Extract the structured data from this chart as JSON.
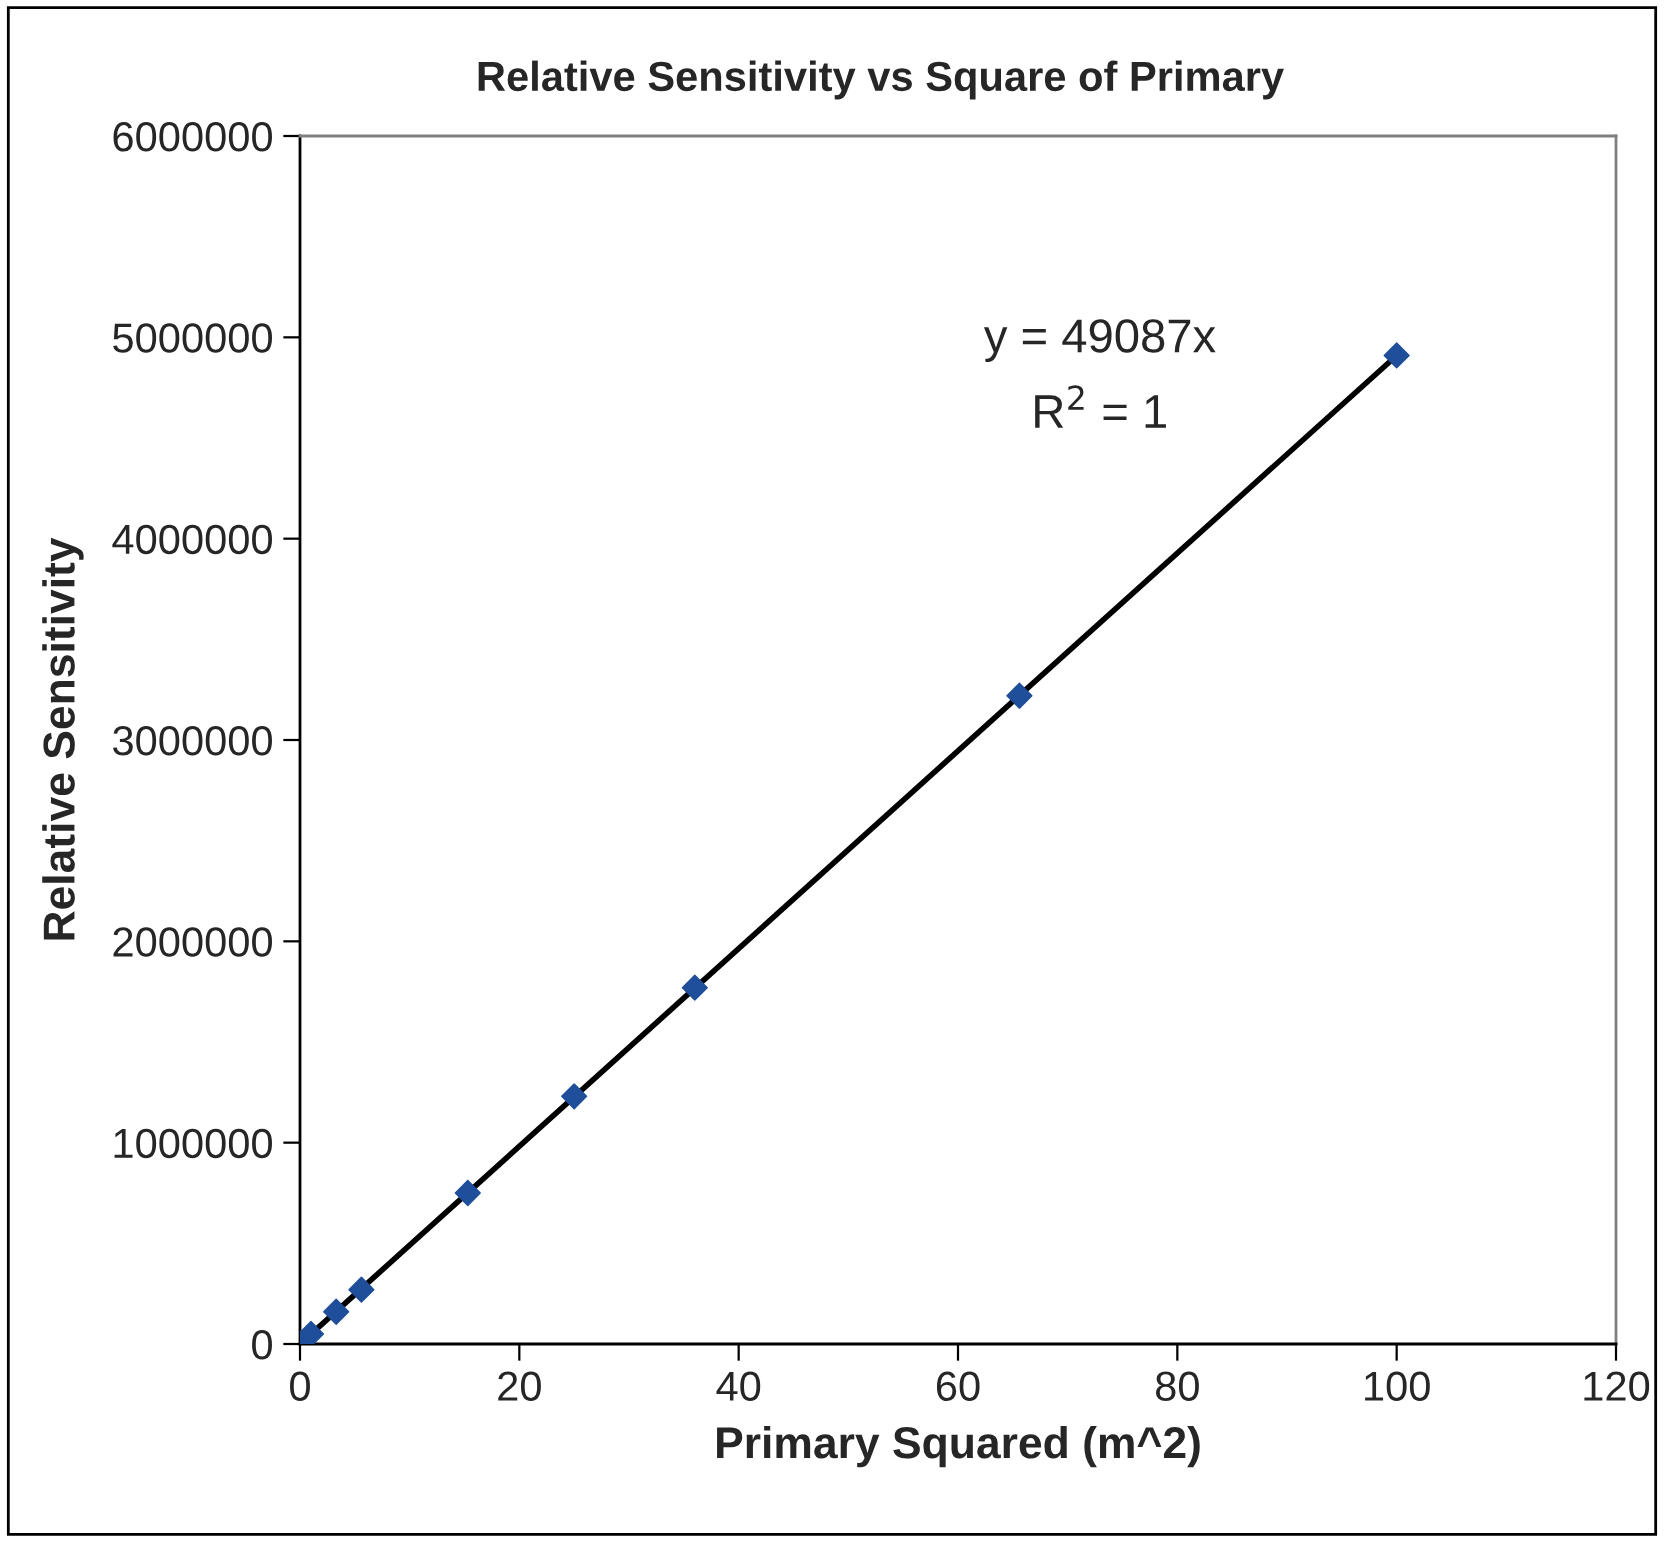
{
  "chart_data": {
    "type": "scatter",
    "title": "Relative Sensitivity vs Square of Primary",
    "xlabel": "Primary Squared (m^2)",
    "ylabel": "Relative Sensitivity",
    "annotations": [
      "y = 49087x",
      "R$^{2}$ = 1"
    ],
    "grid": false,
    "legend": false,
    "xlim": [
      0,
      120
    ],
    "xticks": [
      0,
      20,
      40,
      60,
      80,
      100,
      120
    ],
    "ylim": [
      0,
      6000000
    ],
    "yticks": [
      0,
      1000000,
      2000000,
      3000000,
      4000000,
      5000000,
      6000000
    ],
    "series": [
      {
        "marker": "diamond",
        "color": "#1f4e9a",
        "x": [
          0,
          1,
          3.3,
          5.6,
          15.3,
          25,
          36,
          65.6,
          100
        ],
        "values": [
          0,
          50000,
          160000,
          270000,
          750000,
          1230000,
          1770000,
          3220000,
          4910000
        ]
      },
      {
        "type": "line",
        "marker": "none",
        "color": "#000000",
        "x": [
          0,
          100
        ],
        "values": [
          0,
          4910000
        ]
      }
    ]
  }
}
